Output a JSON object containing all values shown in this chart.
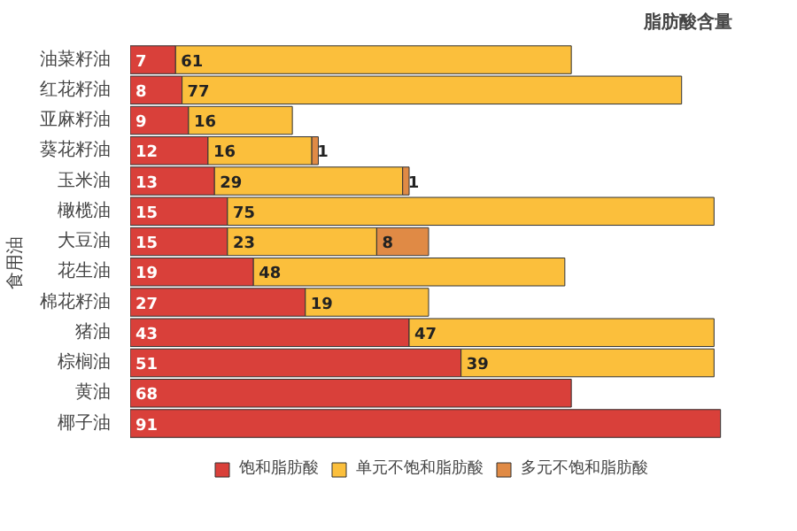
{
  "chart_data": {
    "type": "bar",
    "orientation": "horizontal",
    "stacked": true,
    "data_labels": true,
    "title": "脂肪酸含量",
    "ylabel": "食用油",
    "categories": [
      "油菜籽油",
      "红花籽油",
      "亚麻籽油",
      "葵花籽油",
      "玉米油",
      "橄榄油",
      "大豆油",
      "花生油",
      "棉花籽油",
      "猪油",
      "棕榈油",
      "黄油",
      "椰子油"
    ],
    "series": [
      {
        "name": "饱和脂肪酸",
        "color": "#d9403a",
        "values": [
          7,
          8,
          9,
          12,
          13,
          15,
          15,
          19,
          27,
          43,
          51,
          68,
          91
        ]
      },
      {
        "name": "单元不饱和脂肪酸",
        "color": "#fbbf3c",
        "values": [
          61,
          77,
          16,
          16,
          29,
          75,
          23,
          48,
          19,
          47,
          39,
          null,
          null
        ]
      },
      {
        "name": "多元不饱和脂肪酸",
        "color": "#e08a45",
        "values": [
          null,
          null,
          null,
          1,
          1,
          null,
          8,
          null,
          null,
          null,
          null,
          null,
          null
        ]
      }
    ],
    "legend": "bottom",
    "grid": false
  }
}
